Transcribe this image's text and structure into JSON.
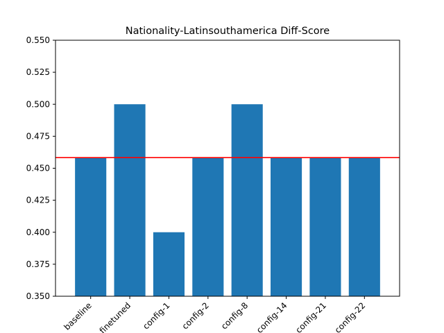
{
  "chart_data": {
    "type": "bar",
    "title": "Nationality-Latinsouthamerica Diff-Score",
    "xlabel": "",
    "ylabel": "",
    "categories": [
      "baseline",
      "finetuned",
      "config-1",
      "config-2",
      "config-8",
      "config-14",
      "config-21",
      "config-22"
    ],
    "values": [
      0.4583,
      0.5,
      0.4,
      0.4583,
      0.5,
      0.4583,
      0.4583,
      0.4583
    ],
    "ylim": [
      0.35,
      0.55
    ],
    "yticks": [
      "0.350",
      "0.375",
      "0.400",
      "0.425",
      "0.450",
      "0.475",
      "0.500",
      "0.525",
      "0.550"
    ],
    "reference_line": {
      "y": 0.4583,
      "color": "#ff0000"
    },
    "bar_color": "#1f77b4",
    "grid": false,
    "legend": "none"
  }
}
